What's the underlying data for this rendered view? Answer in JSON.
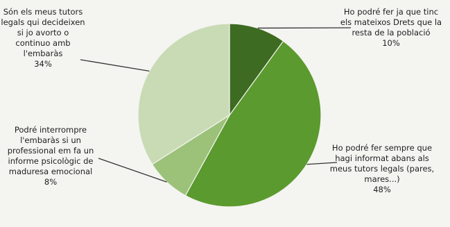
{
  "chart_data": {
    "type": "pie",
    "title": "",
    "slices": [
      {
        "label": "Ho podré fer ja que tinc els mateixos Drets que la resta de la població",
        "value": 10,
        "value_label": "10%",
        "color": "#3d6b21"
      },
      {
        "label": "Ho podré fer sempre que hagi informat abans als meus tutors legals (pares, mares...)",
        "value": 48,
        "value_label": "48%",
        "color": "#5b9a2e"
      },
      {
        "label": "Podré interrompre l'embaràs si un professional em fa un informe psicològic de maduresa emocional",
        "value": 8,
        "value_label": "8%",
        "color": "#9cc27a"
      },
      {
        "label": "Són els meus tutors legals qui decideixen si jo avorto o continuo amb l'embaràs",
        "value": 34,
        "value_label": "34%",
        "color": "#c9dbb4"
      }
    ]
  }
}
